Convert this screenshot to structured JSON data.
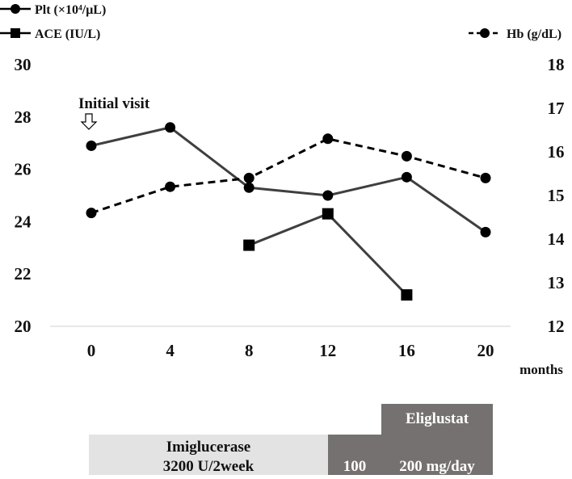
{
  "chart_data": {
    "type": "line",
    "x": [
      0,
      4,
      8,
      12,
      16,
      20
    ],
    "x_ticks": [
      "0",
      "4",
      "8",
      "12",
      "16",
      "20"
    ],
    "xlabel": "months",
    "y_left": {
      "ticks": [
        "20",
        "22",
        "24",
        "26",
        "28",
        "30"
      ],
      "ylim": [
        20,
        30
      ]
    },
    "y_right": {
      "ticks": [
        "12",
        "13",
        "14",
        "15",
        "16",
        "17",
        "18"
      ],
      "ylim": [
        12,
        18
      ]
    },
    "series": [
      {
        "name": "Plt (×10⁴/μL)",
        "axis": "left",
        "marker": "circle",
        "line": "solid",
        "x": [
          0,
          4,
          8,
          12,
          16,
          20
        ],
        "values": [
          26.9,
          27.6,
          25.3,
          25.0,
          25.7,
          23.6
        ]
      },
      {
        "name": "ACE (IU/L)",
        "axis": "left",
        "marker": "square",
        "line": "solid",
        "x": [
          8,
          12,
          16
        ],
        "values": [
          23.1,
          24.3,
          21.2
        ]
      },
      {
        "name": "Hb (g/dL)",
        "axis": "right",
        "marker": "circle",
        "line": "dashed",
        "x": [
          0,
          4,
          8,
          12,
          16,
          20
        ],
        "values": [
          14.6,
          15.2,
          15.4,
          16.3,
          15.9,
          15.4
        ]
      }
    ],
    "legend_position": "top",
    "annotation": {
      "label": "Initial visit",
      "at_x": 0
    },
    "colors": {
      "line": "#3f3f3f",
      "marker": "#000000",
      "light_bar": "#e3e3e3",
      "dark_bar": "#767171"
    }
  },
  "treatment": {
    "imiglucerase_line1": "Imiglucerase",
    "imiglucerase_line2": "3200 U/2week",
    "eliglustat_label": "Eliglustat",
    "dose_100": "100",
    "dose_200": "200 mg/day"
  }
}
